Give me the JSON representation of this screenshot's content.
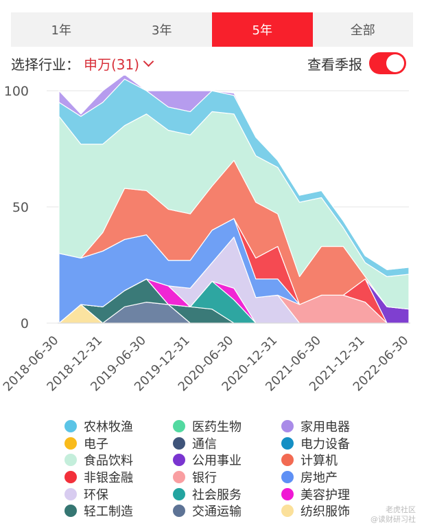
{
  "tabs": [
    {
      "label": "1年",
      "active": false
    },
    {
      "label": "3年",
      "active": false
    },
    {
      "label": "5年",
      "active": true
    },
    {
      "label": "全部",
      "active": false
    }
  ],
  "filter": {
    "label": "选择行业：",
    "value": "申万(31)"
  },
  "season": {
    "label": "查看季报",
    "on": true
  },
  "watermark": {
    "line1": "老虎社区",
    "line2": "@读财研习社"
  },
  "chart_data": {
    "type": "area",
    "stacked": true,
    "percent": true,
    "x_tick_labels": [
      "2018-06-30",
      "2018-12-31",
      "2019-06-30",
      "2019-12-31",
      "2020-06-30",
      "2020-12-31",
      "2021-06-30",
      "2021-12-31",
      "2022-06-30"
    ],
    "y_ticks": [
      0,
      50,
      100
    ],
    "ylim": [
      0,
      100
    ],
    "x": [
      "2018-06-30",
      "2018-09-30",
      "2018-12-31",
      "2019-03-31",
      "2019-06-30",
      "2019-09-30",
      "2019-12-31",
      "2020-03-31",
      "2020-06-30",
      "2020-09-30",
      "2020-12-31",
      "2021-03-31",
      "2021-06-30",
      "2021-09-30",
      "2021-12-31",
      "2022-03-31",
      "2022-06-30"
    ],
    "series": [
      {
        "name": "纺织服饰",
        "color": "#fbe3a0",
        "values": [
          0,
          8,
          0,
          0,
          0,
          0,
          0,
          0,
          0,
          0,
          0,
          0,
          0,
          0,
          0,
          0,
          0
        ]
      },
      {
        "name": "交通运输",
        "color": "#6e83a3",
        "values": [
          0,
          0,
          0,
          7,
          9,
          8,
          0,
          0,
          0,
          0,
          0,
          0,
          0,
          0,
          0,
          0,
          0
        ]
      },
      {
        "name": "轻工制造",
        "color": "#3a7a78",
        "values": [
          0,
          0,
          7,
          7,
          10,
          0,
          7,
          6,
          0,
          0,
          0,
          0,
          0,
          0,
          0,
          0,
          0
        ]
      },
      {
        "name": "社会服务",
        "color": "#2ea6a1",
        "values": [
          0,
          0,
          0,
          0,
          0,
          0,
          0,
          12,
          10,
          0,
          0,
          0,
          0,
          0,
          0,
          0,
          0
        ]
      },
      {
        "name": "美容护理",
        "color": "#f026d4",
        "values": [
          0,
          0,
          0,
          0,
          0,
          8,
          0,
          0,
          5,
          0,
          0,
          0,
          0,
          0,
          0,
          0,
          0
        ]
      },
      {
        "name": "环保",
        "color": "#d9d0f0",
        "values": [
          0,
          0,
          0,
          0,
          0,
          0,
          8,
          8,
          22,
          11,
          12,
          0,
          0,
          0,
          0,
          0,
          0
        ]
      },
      {
        "name": "银行",
        "color": "#f9a3a5",
        "values": [
          0,
          0,
          0,
          0,
          0,
          0,
          0,
          0,
          0,
          0,
          0,
          8,
          12,
          12,
          9,
          0,
          0
        ]
      },
      {
        "name": "房地产",
        "color": "#6fa0f5",
        "values": [
          30,
          20,
          24,
          22,
          19,
          11,
          12,
          14,
          8,
          8,
          7,
          0,
          0,
          0,
          0,
          0,
          0
        ]
      },
      {
        "name": "非银金融",
        "color": "#f54a52",
        "values": [
          0,
          0,
          0,
          0,
          0,
          0,
          0,
          0,
          0,
          9,
          14,
          0,
          0,
          0,
          10,
          0,
          0
        ]
      },
      {
        "name": "公用事业",
        "color": "#7f3fd0",
        "values": [
          0,
          0,
          0,
          0,
          0,
          0,
          0,
          0,
          0,
          0,
          0,
          0,
          0,
          0,
          0,
          7,
          6
        ]
      },
      {
        "name": "电子",
        "color": "#fbc539",
        "values": [
          0,
          0,
          0,
          0,
          0,
          0,
          0,
          0,
          0,
          0,
          0,
          0,
          0,
          0,
          0,
          0,
          0
        ]
      },
      {
        "name": "计算机",
        "color": "#f5806c",
        "values": [
          0,
          0,
          8,
          22,
          19,
          22,
          20,
          19,
          25,
          24,
          14,
          12,
          21,
          21,
          1,
          0,
          0
        ]
      },
      {
        "name": "通信",
        "color": "#41557a",
        "values": [
          0,
          0,
          0,
          0,
          0,
          0,
          0,
          0,
          0,
          0,
          0,
          0,
          0,
          0,
          0,
          0,
          0
        ]
      },
      {
        "name": "食品饮料",
        "color": "#c8f0e0",
        "values": [
          59,
          49,
          38,
          27,
          33,
          34,
          34,
          32,
          20,
          20,
          20,
          32,
          21,
          8,
          6,
          13,
          15
        ]
      },
      {
        "name": "电力设备",
        "color": "#3aa0ce",
        "values": [
          0,
          0,
          0,
          0,
          0,
          0,
          0,
          0,
          0,
          0,
          0,
          0,
          0,
          0,
          0,
          0,
          0
        ]
      },
      {
        "name": "医药生物",
        "color": "#74e1b3",
        "values": [
          0,
          0,
          0,
          0,
          0,
          0,
          0,
          0,
          0,
          0,
          0,
          0,
          0,
          0,
          0,
          0,
          0
        ]
      },
      {
        "name": "农林牧渔",
        "color": "#7ccfe9",
        "values": [
          6,
          12,
          18,
          20,
          10,
          10,
          10,
          9,
          8,
          8,
          3,
          3,
          3,
          3,
          3,
          3,
          3
        ]
      },
      {
        "name": "家用电器",
        "color": "#b69cee",
        "values": [
          5,
          1,
          5,
          2,
          0,
          7,
          9,
          0,
          1,
          0,
          0,
          0,
          0,
          0,
          0,
          0,
          0
        ]
      }
    ]
  },
  "legend": [
    {
      "name": "农林牧渔",
      "color": "#5bc4e6"
    },
    {
      "name": "医药生物",
      "color": "#52d9a0"
    },
    {
      "name": "家用电器",
      "color": "#a98be8"
    },
    {
      "name": "电子",
      "color": "#f9bb1b"
    },
    {
      "name": "通信",
      "color": "#3f547a"
    },
    {
      "name": "电力设备",
      "color": "#148fc4"
    },
    {
      "name": "食品饮料",
      "color": "#c4eedb"
    },
    {
      "name": "公用事业",
      "color": "#7a35d0"
    },
    {
      "name": "计算机",
      "color": "#f26a52"
    },
    {
      "name": "非银金融",
      "color": "#f2303a"
    },
    {
      "name": "银行",
      "color": "#f99ea1"
    },
    {
      "name": "房地产",
      "color": "#5e90f5"
    },
    {
      "name": "环保",
      "color": "#d8ccf0"
    },
    {
      "name": "社会服务",
      "color": "#23a4a0"
    },
    {
      "name": "美容护理",
      "color": "#f018d4"
    },
    {
      "name": "轻工制造",
      "color": "#357672"
    },
    {
      "name": "交通运输",
      "color": "#5d7395"
    },
    {
      "name": "纺织服饰",
      "color": "#fbe09a"
    }
  ]
}
